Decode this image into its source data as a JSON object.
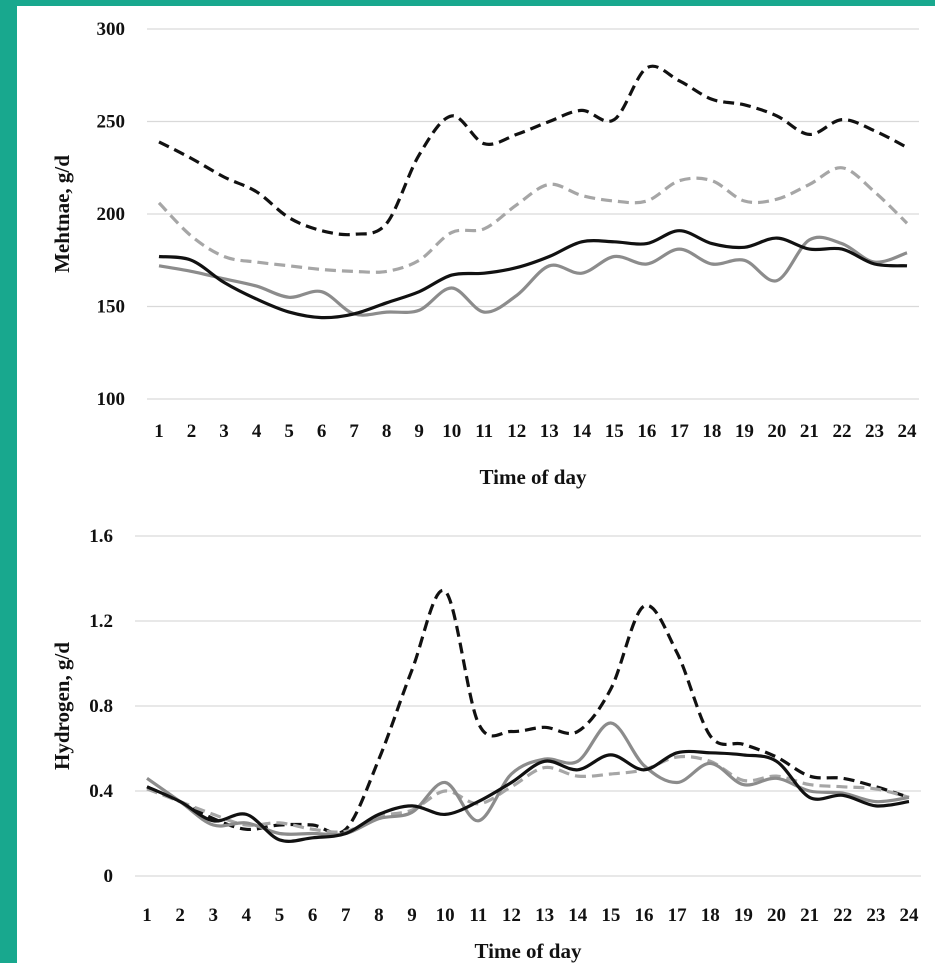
{
  "chart_data": [
    {
      "type": "line",
      "title": "",
      "xlabel": "Time of day",
      "ylabel": "Mehtnae, g/d",
      "ylim": [
        100,
        300
      ],
      "yticks": [
        100,
        150,
        200,
        250,
        300
      ],
      "grid": true,
      "legend": "none",
      "x": [
        1,
        2,
        3,
        4,
        5,
        6,
        7,
        8,
        9,
        10,
        11,
        12,
        13,
        14,
        15,
        16,
        17,
        18,
        19,
        20,
        21,
        22,
        23,
        24
      ],
      "series": [
        {
          "color": "#111111",
          "dash": "dashed",
          "values": [
            239,
            230,
            220,
            212,
            198,
            191,
            189,
            195,
            232,
            253,
            238,
            243,
            250,
            256,
            251,
            279,
            272,
            262,
            259,
            253,
            243,
            251,
            245,
            236
          ]
        },
        {
          "color": "#a6a6a6",
          "dash": "dashed",
          "values": [
            206,
            188,
            177,
            174,
            172,
            170,
            169,
            169,
            175,
            190,
            192,
            205,
            216,
            210,
            207,
            207,
            218,
            218,
            207,
            208,
            216,
            225,
            212,
            195
          ]
        },
        {
          "color": "#8c8c8c",
          "dash": "solid",
          "values": [
            172,
            169,
            165,
            161,
            155,
            158,
            146,
            147,
            148,
            160,
            147,
            156,
            172,
            168,
            177,
            173,
            181,
            173,
            175,
            164,
            186,
            184,
            174,
            179
          ]
        },
        {
          "color": "#111111",
          "dash": "solid",
          "values": [
            177,
            175,
            163,
            154,
            147,
            144,
            146,
            152,
            158,
            167,
            168,
            171,
            177,
            185,
            185,
            184,
            191,
            184,
            182,
            187,
            181,
            181,
            173,
            172
          ]
        }
      ]
    },
    {
      "type": "line",
      "title": "",
      "xlabel": "Time of day",
      "ylabel": "Hydrogen, g/d",
      "ylim": [
        0,
        1.6
      ],
      "yticks": [
        0,
        0.4,
        0.8,
        1.2,
        1.6
      ],
      "grid": true,
      "legend": "none",
      "x": [
        1,
        2,
        3,
        4,
        5,
        6,
        7,
        8,
        9,
        10,
        11,
        12,
        13,
        14,
        15,
        16,
        17,
        18,
        19,
        20,
        21,
        22,
        23,
        24
      ],
      "series": [
        {
          "color": "#111111",
          "dash": "dashed",
          "values": [
            0.42,
            0.35,
            0.27,
            0.22,
            0.24,
            0.24,
            0.22,
            0.55,
            0.97,
            1.34,
            0.72,
            0.68,
            0.7,
            0.68,
            0.88,
            1.27,
            1.05,
            0.66,
            0.62,
            0.56,
            0.47,
            0.46,
            0.42,
            0.37
          ]
        },
        {
          "color": "#a6a6a6",
          "dash": "dashed",
          "values": [
            0.41,
            0.35,
            0.29,
            0.24,
            0.25,
            0.22,
            0.21,
            0.28,
            0.31,
            0.4,
            0.34,
            0.42,
            0.51,
            0.47,
            0.48,
            0.5,
            0.56,
            0.54,
            0.45,
            0.47,
            0.43,
            0.42,
            0.41,
            0.37
          ]
        },
        {
          "color": "#8c8c8c",
          "dash": "solid",
          "values": [
            0.46,
            0.35,
            0.24,
            0.25,
            0.2,
            0.2,
            0.2,
            0.27,
            0.3,
            0.44,
            0.26,
            0.48,
            0.55,
            0.54,
            0.72,
            0.52,
            0.44,
            0.53,
            0.43,
            0.46,
            0.4,
            0.39,
            0.35,
            0.37
          ]
        },
        {
          "color": "#111111",
          "dash": "solid",
          "values": [
            0.42,
            0.35,
            0.26,
            0.29,
            0.17,
            0.18,
            0.2,
            0.29,
            0.33,
            0.29,
            0.35,
            0.44,
            0.54,
            0.5,
            0.57,
            0.5,
            0.58,
            0.58,
            0.57,
            0.54,
            0.37,
            0.38,
            0.33,
            0.35
          ]
        }
      ]
    }
  ]
}
